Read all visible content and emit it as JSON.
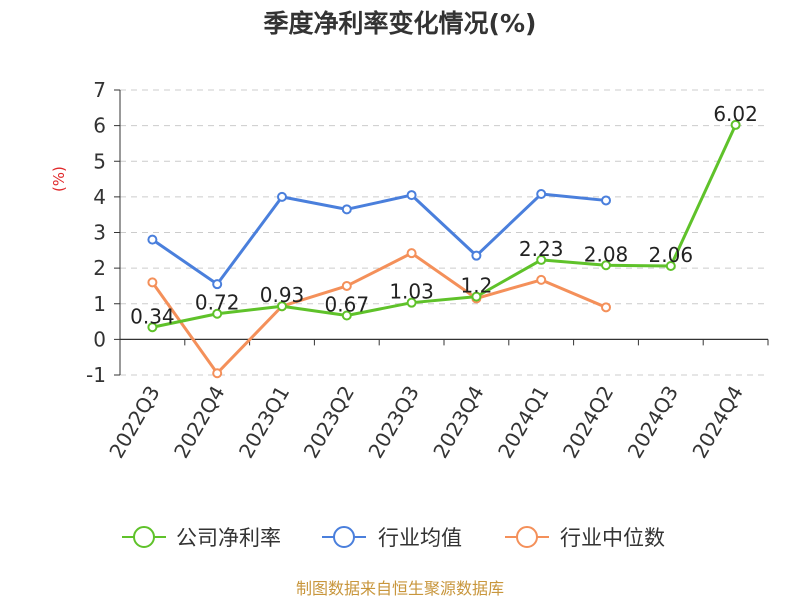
{
  "chart_data": {
    "type": "line",
    "title": "季度净利率变化情况(%)",
    "ylabel": "(%)",
    "xlabel": "",
    "ylim": [
      -1,
      7
    ],
    "yticks": [
      -1,
      0,
      1,
      2,
      3,
      4,
      5,
      6,
      7
    ],
    "categories": [
      "2022Q3",
      "2022Q4",
      "2023Q1",
      "2023Q2",
      "2023Q3",
      "2023Q4",
      "2024Q1",
      "2024Q2",
      "2024Q3",
      "2024Q4"
    ],
    "grid": "horizontal dashed",
    "legend_position": "bottom",
    "series": [
      {
        "name": "公司净利率",
        "color": "#5fc22a",
        "values": [
          0.34,
          0.72,
          0.93,
          0.67,
          1.03,
          1.2,
          2.23,
          2.08,
          2.06,
          6.02
        ],
        "labels": [
          "0.34",
          "0.72",
          "0.93",
          "0.67",
          "1.03",
          "1.2",
          "2.23",
          "2.08",
          "2.06",
          "6.02"
        ]
      },
      {
        "name": "行业均值",
        "color": "#4a7fdc",
        "values": [
          2.8,
          1.55,
          4.0,
          3.65,
          4.05,
          2.35,
          4.08,
          3.9,
          null,
          null
        ]
      },
      {
        "name": "行业中位数",
        "color": "#f4905a",
        "values": [
          1.6,
          -0.95,
          0.93,
          1.5,
          2.42,
          1.15,
          1.67,
          0.9,
          null,
          null
        ]
      }
    ]
  },
  "footer": {
    "source": "制图数据来自恒生聚源数据库",
    "source_color": "#c8963c"
  }
}
